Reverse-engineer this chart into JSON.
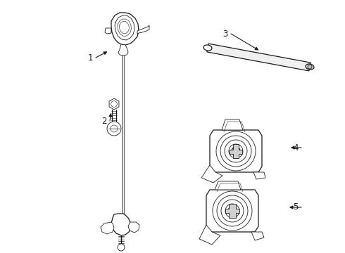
{
  "bg_color": "#ffffff",
  "line_color": "#1a1a1a",
  "lw_main": 0.9,
  "lw_thin": 0.6,
  "lw_thick": 1.2
}
